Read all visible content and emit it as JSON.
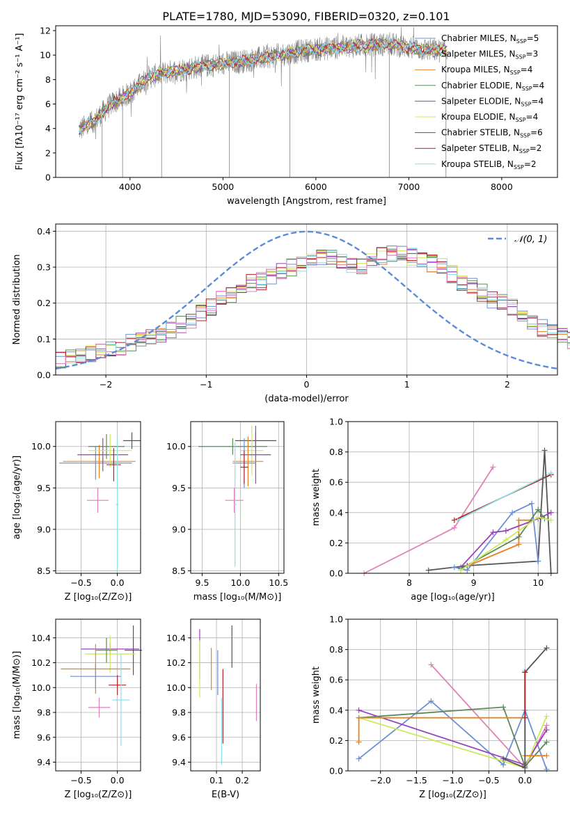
{
  "figure_title": "PLATE=1780, MJD=53090, FIBERID=0320, z=0.101",
  "palette": {
    "chabrier_miles": "#6a8fd8",
    "salpeter_miles": "#6a8fd8",
    "kroupa_miles": "#e8821e",
    "chabrier_elodie": "#5a8a5a",
    "salpeter_elodie": "#9a3fbf",
    "kroupa_elodie": "#cde85a",
    "chabrier_stelib": "#555555",
    "salpeter_stelib": "#b22222",
    "kroupa_stelib": "#8ae0e8",
    "pink": "#e17fb8",
    "grey_spectrum": "#808080",
    "gaussian": "#5b8bd6"
  },
  "chart_data": [
    {
      "id": "spectrum",
      "type": "line",
      "xlabel": "wavelength [Angstrom, rest frame]",
      "ylabel": "Flux [fλ10⁻¹⁷ erg cm⁻² s⁻¹ A⁻¹]",
      "xlim": [
        3200,
        8600
      ],
      "ylim": [
        0,
        12.4
      ],
      "xticks": [
        4000,
        5000,
        6000,
        7000,
        8000
      ],
      "yticks": [
        0,
        2,
        4,
        6,
        8,
        10,
        12
      ],
      "grid": false,
      "legend_position": "top-right",
      "legend": [
        "Chabrier MILES, N_SSP=5",
        "Salpeter MILES, N_SSP=3",
        "Kroupa MILES, N_SSP=4",
        "Chabrier ELODIE, N_SSP=4",
        "Salpeter ELODIE, N_SSP=4",
        "Kroupa ELODIE, N_SSP=4",
        "Chabrier STELIB, N_SSP=6",
        "Salpeter STELIB, N_SSP=2",
        "Kroupa STELIB, N_SSP=2"
      ],
      "data_trend": {
        "x": [
          3450,
          3600,
          3800,
          4000,
          4200,
          4400,
          4700,
          5000,
          5300,
          5600,
          5900,
          6200,
          6500,
          6800,
          7100,
          7400
        ],
        "y": [
          3.9,
          4.5,
          6.0,
          6.9,
          8.2,
          8.6,
          9.0,
          9.3,
          9.6,
          10.0,
          10.4,
          10.6,
          10.8,
          10.9,
          10.5,
          10.3
        ]
      }
    },
    {
      "id": "residuals",
      "type": "histogram",
      "xlabel": "(data-model)/error",
      "ylabel": "Normed distribution",
      "xlim": [
        -2.5,
        2.5
      ],
      "ylim": [
        0,
        0.42
      ],
      "xticks": [
        -2,
        -1,
        0,
        1,
        2
      ],
      "yticks": [
        0.0,
        0.1,
        0.2,
        0.3,
        0.4
      ],
      "grid": true,
      "legend_position": "top-right",
      "legend": [
        "𝒩(0, 1)"
      ],
      "bin_width": 0.1,
      "mean_histogram": [
        0.04,
        0.05,
        0.055,
        0.06,
        0.065,
        0.07,
        0.08,
        0.09,
        0.1,
        0.11,
        0.115,
        0.125,
        0.14,
        0.155,
        0.17,
        0.19,
        0.21,
        0.225,
        0.24,
        0.255,
        0.26,
        0.27,
        0.29,
        0.3,
        0.31,
        0.32,
        0.33,
        0.325,
        0.32,
        0.31,
        0.305,
        0.32,
        0.33,
        0.34,
        0.335,
        0.33,
        0.32,
        0.31,
        0.3,
        0.28,
        0.26,
        0.25,
        0.23,
        0.21,
        0.2,
        0.19,
        0.17,
        0.15,
        0.13,
        0.12,
        0.11,
        0.095,
        0.085,
        0.075,
        0.065,
        0.055,
        0.045,
        0.04,
        0.035,
        0.03
      ]
    },
    {
      "id": "age_vs_Z",
      "type": "errorbar",
      "xlabel": "Z [log₁₀(Z/Z⊙)]",
      "ylabel": "age [log₁₀(age/yr)]",
      "xlim": [
        -0.85,
        0.32
      ],
      "ylim": [
        8.47,
        10.3
      ],
      "xticks": [
        -0.5,
        0.0
      ],
      "yticks": [
        8.5,
        9.0,
        9.5,
        10.0
      ],
      "grid": true,
      "points": [
        {
          "x": -0.25,
          "y": 9.82,
          "xerr": 0.5,
          "yerr": 0.2,
          "c": "kroupa_miles"
        },
        {
          "x": -0.3,
          "y": 9.8,
          "xerr": 0.5,
          "yerr": 0.2,
          "c": "chabrier_miles"
        },
        {
          "x": -0.2,
          "y": 9.9,
          "xerr": 0.35,
          "yerr": 0.2,
          "c": "salpeter_elodie"
        },
        {
          "x": -0.15,
          "y": 10.0,
          "xerr": 0.25,
          "yerr": 0.15,
          "c": "chabrier_elodie"
        },
        {
          "x": -0.1,
          "y": 9.95,
          "xerr": 0.3,
          "yerr": 0.2,
          "c": "kroupa_elodie"
        },
        {
          "x": 0.2,
          "y": 10.07,
          "xerr": 0.12,
          "yerr": 0.1,
          "c": "chabrier_stelib"
        },
        {
          "x": -0.05,
          "y": 9.78,
          "xerr": 0.1,
          "yerr": 0.2,
          "c": "salpeter_stelib"
        },
        {
          "x": -0.27,
          "y": 9.35,
          "xerr": 0.15,
          "yerr": 0.15,
          "c": "pink"
        },
        {
          "x": 0.0,
          "y": 9.3,
          "xerr": 0.02,
          "yerr": 0.8,
          "c": "kroupa_stelib"
        }
      ]
    },
    {
      "id": "age_vs_mass",
      "type": "errorbar",
      "xlabel": "mass [log₁₀(M/M⊙)]",
      "ylabel": "",
      "xlim": [
        9.35,
        10.57
      ],
      "ylim": [
        8.47,
        10.3
      ],
      "xticks": [
        9.5,
        10.0,
        10.5
      ],
      "yticks": [
        8.5,
        9.0,
        9.5,
        10.0
      ],
      "grid": true,
      "points": [
        {
          "x": 10.2,
          "y": 10.07,
          "xerr": 0.27,
          "yerr": 0.1,
          "c": "chabrier_stelib"
        },
        {
          "x": 9.9,
          "y": 10.0,
          "xerr": 0.45,
          "yerr": 0.1,
          "c": "chabrier_elodie"
        },
        {
          "x": 10.15,
          "y": 9.95,
          "xerr": 0.15,
          "yerr": 0.3,
          "c": "kroupa_elodie"
        },
        {
          "x": 10.2,
          "y": 9.9,
          "xerr": 0.2,
          "yerr": 0.35,
          "c": "salpeter_elodie"
        },
        {
          "x": 10.1,
          "y": 9.82,
          "xerr": 0.2,
          "yerr": 0.3,
          "c": "kroupa_miles"
        },
        {
          "x": 10.05,
          "y": 9.8,
          "xerr": 0.15,
          "yerr": 0.3,
          "c": "chabrier_miles"
        },
        {
          "x": 10.05,
          "y": 9.75,
          "xerr": 0.05,
          "yerr": 0.2,
          "c": "salpeter_stelib"
        },
        {
          "x": 9.92,
          "y": 9.35,
          "xerr": 0.12,
          "yerr": 0.15,
          "c": "pink"
        },
        {
          "x": 9.93,
          "y": 9.3,
          "xerr": 0.02,
          "yerr": 0.75,
          "c": "kroupa_stelib"
        }
      ]
    },
    {
      "id": "weight_vs_age",
      "type": "line",
      "xlabel": "age [log₁₀(age/yr)]",
      "ylabel": "mass weight",
      "xlim": [
        7.05,
        10.3
      ],
      "ylim": [
        0,
        1.0
      ],
      "xticks": [
        8,
        9,
        10
      ],
      "yticks": [
        0.0,
        0.2,
        0.4,
        0.6,
        0.8,
        1.0
      ],
      "grid": true,
      "series": [
        {
          "c": "pink",
          "x": [
            7.3,
            8.7,
            9.3
          ],
          "y": [
            0.0,
            0.3,
            0.7
          ]
        },
        {
          "c": "salpeter_stelib",
          "x": [
            8.7,
            10.2
          ],
          "y": [
            0.35,
            0.65
          ]
        },
        {
          "c": "kroupa_stelib",
          "x": [
            8.75,
            10.2
          ],
          "y": [
            0.35,
            0.66
          ]
        },
        {
          "c": "chabrier_stelib",
          "x": [
            8.3,
            8.9,
            10.0,
            10.1,
            10.2
          ],
          "y": [
            0.02,
            0.05,
            0.08,
            0.81,
            0.0
          ]
        },
        {
          "c": "chabrier_miles",
          "x": [
            8.7,
            8.9,
            9.6,
            9.9,
            10.0
          ],
          "y": [
            0.04,
            0.02,
            0.4,
            0.46,
            0.08
          ]
        },
        {
          "c": "kroupa_miles",
          "x": [
            8.8,
            9.7,
            9.7,
            9.9
          ],
          "y": [
            0.03,
            0.19,
            0.35,
            0.35
          ]
        },
        {
          "c": "salpeter_elodie",
          "x": [
            8.8,
            9.3,
            9.5,
            10.0,
            10.2
          ],
          "y": [
            0.04,
            0.27,
            0.28,
            0.36,
            0.4
          ]
        },
        {
          "c": "chabrier_elodie",
          "x": [
            8.8,
            9.7,
            10.0,
            10.1
          ],
          "y": [
            0.03,
            0.24,
            0.42,
            0.36
          ]
        },
        {
          "c": "kroupa_elodie",
          "x": [
            8.8,
            9.5,
            10.0,
            10.2
          ],
          "y": [
            0.02,
            0.22,
            0.37,
            0.35
          ]
        }
      ]
    },
    {
      "id": "mass_vs_Z",
      "type": "errorbar",
      "xlabel": "Z [log₁₀(Z/Z⊙)]",
      "ylabel": "mass [log₁₀(M/M⊙)]",
      "xlim": [
        -0.85,
        0.32
      ],
      "ylim": [
        9.33,
        10.55
      ],
      "xticks": [
        -0.5,
        0.0
      ],
      "yticks": [
        9.4,
        9.6,
        9.8,
        10.0,
        10.2,
        10.4
      ],
      "grid": true,
      "points": [
        {
          "x": 0.22,
          "y": 10.3,
          "xerr": 0.12,
          "yerr": 0.2,
          "c": "chabrier_stelib"
        },
        {
          "x": -0.1,
          "y": 10.31,
          "xerr": 0.4,
          "yerr": 0.05,
          "c": "salpeter_elodie"
        },
        {
          "x": -0.1,
          "y": 10.27,
          "xerr": 0.35,
          "yerr": 0.15,
          "c": "kroupa_elodie"
        },
        {
          "x": -0.15,
          "y": 10.3,
          "xerr": 0.15,
          "yerr": 0.1,
          "c": "chabrier_elodie"
        },
        {
          "x": -0.3,
          "y": 10.15,
          "xerr": 0.48,
          "yerr": 0.2,
          "c": "kroupa_miles"
        },
        {
          "x": -0.3,
          "y": 10.09,
          "xerr": 0.35,
          "yerr": 0.1,
          "c": "chabrier_miles"
        },
        {
          "x": 0.0,
          "y": 10.02,
          "xerr": 0.12,
          "yerr": 0.08,
          "c": "salpeter_stelib"
        },
        {
          "x": 0.05,
          "y": 9.9,
          "xerr": 0.12,
          "yerr": 0.37,
          "c": "kroupa_stelib"
        },
        {
          "x": -0.25,
          "y": 9.84,
          "xerr": 0.15,
          "yerr": 0.08,
          "c": "pink"
        }
      ]
    },
    {
      "id": "mass_vs_EBV",
      "type": "errorbar",
      "xlabel": "E(B-V)",
      "ylabel": "",
      "xlim": [
        0.0,
        0.27
      ],
      "ylim": [
        9.33,
        10.55
      ],
      "xticks": [
        0.1,
        0.2
      ],
      "yticks": [
        9.4,
        9.6,
        9.8,
        10.0,
        10.2,
        10.4
      ],
      "grid": true,
      "points": [
        {
          "x": 0.16,
          "y": 10.33,
          "xerr": 0.0,
          "yerr": 0.17,
          "c": "chabrier_stelib"
        },
        {
          "x": 0.035,
          "y": 10.27,
          "xerr": 0.0,
          "yerr": 0.2,
          "c": "salpeter_elodie"
        },
        {
          "x": 0.035,
          "y": 10.15,
          "xerr": 0.0,
          "yerr": 0.23,
          "c": "kroupa_elodie"
        },
        {
          "x": 0.08,
          "y": 10.15,
          "xerr": 0.0,
          "yerr": 0.17,
          "c": "kroupa_miles"
        },
        {
          "x": 0.105,
          "y": 10.12,
          "xerr": 0.0,
          "yerr": 0.18,
          "c": "chabrier_miles"
        },
        {
          "x": 0.125,
          "y": 9.85,
          "xerr": 0.0,
          "yerr": 0.3,
          "c": "salpeter_stelib"
        },
        {
          "x": 0.12,
          "y": 9.65,
          "xerr": 0.0,
          "yerr": 0.27,
          "c": "kroupa_stelib"
        },
        {
          "x": 0.255,
          "y": 9.88,
          "xerr": 0.0,
          "yerr": 0.15,
          "c": "pink"
        }
      ]
    },
    {
      "id": "weight_vs_Z",
      "type": "line",
      "xlabel": "Z [log₁₀(Z/Z⊙)]",
      "ylabel": "mass weight",
      "xlim": [
        -2.45,
        0.45
      ],
      "ylim": [
        0,
        1.0
      ],
      "xticks": [
        -2.0,
        -1.5,
        -1.0,
        -0.5,
        0.0
      ],
      "yticks": [
        0.0,
        0.2,
        0.4,
        0.6,
        0.8,
        1.0
      ],
      "grid": true,
      "series": [
        {
          "c": "pink",
          "x": [
            -1.3,
            0.0,
            0.3
          ],
          "y": [
            0.7,
            0.02,
            0.3
          ]
        },
        {
          "c": "chabrier_miles",
          "x": [
            -2.3,
            -1.3,
            -0.3,
            0.0,
            0.3
          ],
          "y": [
            0.08,
            0.46,
            0.04,
            0.4,
            0.01
          ]
        },
        {
          "c": "salpeter_elodie",
          "x": [
            -2.3,
            0.0,
            0.3
          ],
          "y": [
            0.4,
            0.04,
            0.27
          ]
        },
        {
          "c": "kroupa_elodie",
          "x": [
            -2.3,
            0.0,
            0.3
          ],
          "y": [
            0.35,
            0.02,
            0.36
          ]
        },
        {
          "c": "chabrier_elodie",
          "x": [
            -2.3,
            -0.3,
            0.0,
            0.3
          ],
          "y": [
            0.35,
            0.42,
            0.03,
            0.19
          ]
        },
        {
          "c": "kroupa_miles",
          "x": [
            -2.3,
            -2.3,
            0.0,
            0.0,
            0.3
          ],
          "y": [
            0.19,
            0.35,
            0.35,
            0.1,
            0.1
          ]
        },
        {
          "c": "kroupa_stelib",
          "x": [
            0.0,
            0.0
          ],
          "y": [
            0.35,
            0.66
          ]
        },
        {
          "c": "chabrier_stelib",
          "x": [
            -0.3,
            0.0,
            0.0,
            0.3
          ],
          "y": [
            0.08,
            0.02,
            0.65,
            0.81
          ]
        },
        {
          "c": "salpeter_stelib",
          "x": [
            0.0,
            0.0
          ],
          "y": [
            0.35,
            0.65
          ]
        }
      ]
    }
  ]
}
